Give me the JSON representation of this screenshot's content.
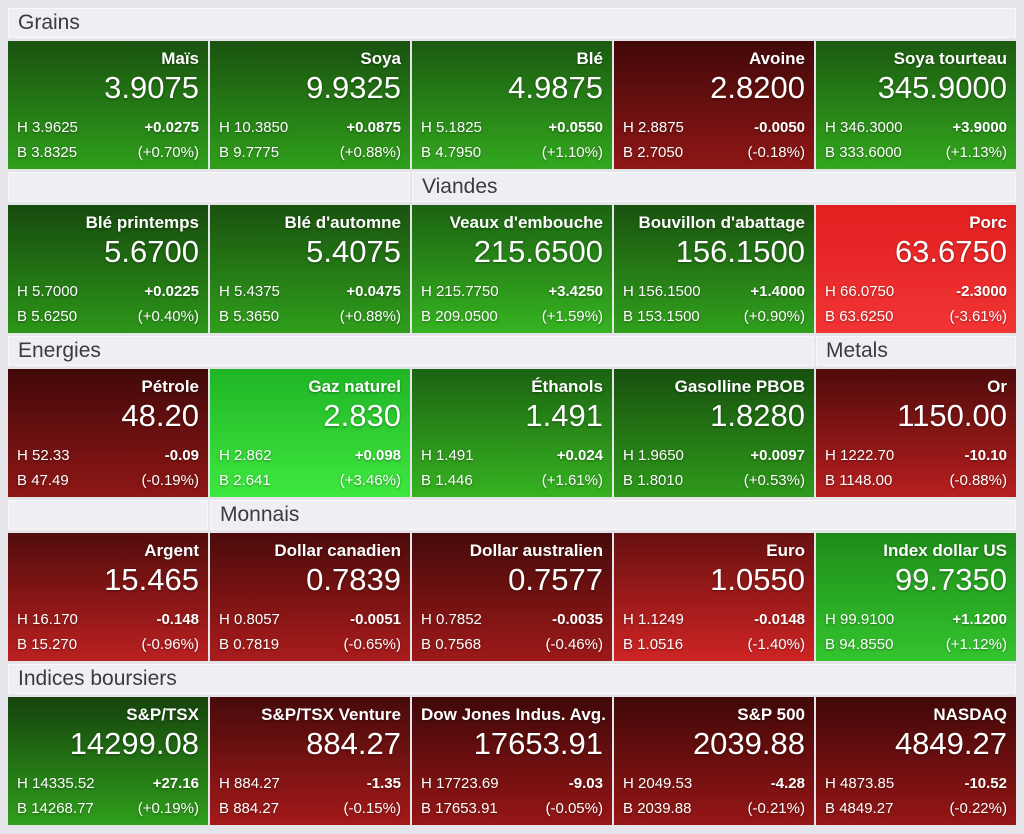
{
  "labels": {
    "high_prefix": "H",
    "low_prefix": "B"
  },
  "rows": [
    {
      "header": [
        {
          "label": "Grains",
          "span": 5
        }
      ],
      "tiles": [
        {
          "name": "Maïs",
          "price": "3.9075",
          "high": "3.9625",
          "low": "3.8325",
          "change": "+0.0275",
          "change_pct": "(+0.70%)",
          "colors": {
            "top": "#1a520f",
            "bottom": "#2f9f1b"
          }
        },
        {
          "name": "Soya",
          "price": "9.9325",
          "high": "10.3850",
          "low": "9.7775",
          "change": "+0.0875",
          "change_pct": "(+0.88%)",
          "colors": {
            "top": "#1a520f",
            "bottom": "#2f9f1b"
          }
        },
        {
          "name": "Blé",
          "price": "4.9875",
          "high": "5.1825",
          "low": "4.7950",
          "change": "+0.0550",
          "change_pct": "(+1.10%)",
          "colors": {
            "top": "#1b5a10",
            "bottom": "#33a81e"
          }
        },
        {
          "name": "Avoine",
          "price": "2.8200",
          "high": "2.8875",
          "low": "2.7050",
          "change": "-0.0050",
          "change_pct": "(-0.18%)",
          "colors": {
            "top": "#420909",
            "bottom": "#8f1616"
          }
        },
        {
          "name": "Soya tourteau",
          "price": "345.9000",
          "high": "346.3000",
          "low": "333.6000",
          "change": "+3.9000",
          "change_pct": "(+1.13%)",
          "colors": {
            "top": "#1b5a10",
            "bottom": "#33a81e"
          }
        }
      ]
    },
    {
      "header": [
        {
          "label": "",
          "span": 2
        },
        {
          "label": "Viandes",
          "span": 3
        }
      ],
      "tiles": [
        {
          "name": "Blé printemps",
          "price": "5.6700",
          "high": "5.7000",
          "low": "5.6250",
          "change": "+0.0225",
          "change_pct": "(+0.40%)",
          "colors": {
            "top": "#174a0d",
            "bottom": "#2c9619"
          }
        },
        {
          "name": "Blé d'automne",
          "price": "5.4075",
          "high": "5.4375",
          "low": "5.3650",
          "change": "+0.0475",
          "change_pct": "(+0.88%)",
          "colors": {
            "top": "#1a520f",
            "bottom": "#2f9f1b"
          }
        },
        {
          "name": "Veaux d'embouche",
          "price": "215.6500",
          "high": "215.7750",
          "low": "209.0500",
          "change": "+3.4250",
          "change_pct": "(+1.59%)",
          "colors": {
            "top": "#1c6311",
            "bottom": "#36b321"
          }
        },
        {
          "name": "Bouvillon d'abattage",
          "price": "156.1500",
          "high": "156.1500",
          "low": "153.1500",
          "change": "+1.4000",
          "change_pct": "(+0.90%)",
          "colors": {
            "top": "#1a520f",
            "bottom": "#30a11c"
          }
        },
        {
          "name": "Porc",
          "price": "63.6750",
          "high": "66.0750",
          "low": "63.6250",
          "change": "-2.3000",
          "change_pct": "(-3.61%)",
          "colors": {
            "top": "#e12020",
            "bottom": "#f23434"
          }
        }
      ]
    },
    {
      "header": [
        {
          "label": "Energies",
          "span": 4
        },
        {
          "label": "Metals",
          "span": 1
        }
      ],
      "tiles": [
        {
          "name": "Pétrole",
          "price": "48.20",
          "high": "52.33",
          "low": "47.49",
          "change": "-0.09",
          "change_pct": "(-0.19%)",
          "colors": {
            "top": "#420909",
            "bottom": "#8f1616"
          }
        },
        {
          "name": "Gaz naturel",
          "price": "2.830",
          "high": "2.862",
          "low": "2.641",
          "change": "+0.098",
          "change_pct": "(+3.46%)",
          "colors": {
            "top": "#20b525",
            "bottom": "#3ee83f"
          }
        },
        {
          "name": "Éthanols",
          "price": "1.491",
          "high": "1.491",
          "low": "1.446",
          "change": "+0.024",
          "change_pct": "(+1.61%)",
          "colors": {
            "top": "#1c6311",
            "bottom": "#36b321"
          }
        },
        {
          "name": "Gasolline PBOB",
          "price": "1.8280",
          "high": "1.9650",
          "low": "1.8010",
          "change": "+0.0097",
          "change_pct": "(+0.53%)",
          "colors": {
            "top": "#18500e",
            "bottom": "#2e9a1a"
          }
        },
        {
          "name": "Or",
          "price": "1150.00",
          "high": "1222.70",
          "low": "1148.00",
          "change": "-10.10",
          "change_pct": "(-0.88%)",
          "colors": {
            "top": "#500b0b",
            "bottom": "#b81f1f"
          }
        }
      ]
    },
    {
      "header": [
        {
          "label": "",
          "span": 1
        },
        {
          "label": "Monnais",
          "span": 4
        }
      ],
      "tiles": [
        {
          "name": "Argent",
          "price": "15.465",
          "high": "16.170",
          "low": "15.270",
          "change": "-0.148",
          "change_pct": "(-0.96%)",
          "colors": {
            "top": "#520c0c",
            "bottom": "#bb2020"
          }
        },
        {
          "name": "Dollar canadien",
          "price": "0.7839",
          "high": "0.8057",
          "low": "0.7819",
          "change": "-0.0051",
          "change_pct": "(-0.65%)",
          "colors": {
            "top": "#4b0a0a",
            "bottom": "#aa1c1c"
          }
        },
        {
          "name": "Dollar australien",
          "price": "0.7577",
          "high": "0.7852",
          "low": "0.7568",
          "change": "-0.0035",
          "change_pct": "(-0.46%)",
          "colors": {
            "top": "#460a0a",
            "bottom": "#9e1919"
          }
        },
        {
          "name": "Euro",
          "price": "1.0550",
          "high": "1.1249",
          "low": "1.0516",
          "change": "-0.0148",
          "change_pct": "(-1.40%)",
          "colors": {
            "top": "#681010",
            "bottom": "#cf2424"
          }
        },
        {
          "name": "Index dollar US",
          "price": "99.7350",
          "high": "99.9100",
          "low": "94.8550",
          "change": "+1.1200",
          "change_pct": "(+1.12%)",
          "colors": {
            "top": "#1e8c18",
            "bottom": "#34c52e"
          }
        }
      ]
    },
    {
      "header": [
        {
          "label": "Indices boursiers",
          "span": 5
        }
      ],
      "tiles": [
        {
          "name": "S&P/TSX",
          "price": "14299.08",
          "high": "14335.52",
          "low": "14268.77",
          "change": "+27.16",
          "change_pct": "(+0.19%)",
          "colors": {
            "top": "#16430d",
            "bottom": "#2f9f1b"
          }
        },
        {
          "name": "S&P/TSX Venture",
          "price": "884.27",
          "high": "884.27",
          "low": "884.27",
          "change": "-1.35",
          "change_pct": "(-0.15%)",
          "colors": {
            "top": "#470a0a",
            "bottom": "#a41a1a"
          }
        },
        {
          "name": "Dow Jones Indus. Avg.",
          "price": "17653.91",
          "high": "17723.69",
          "low": "17653.91",
          "change": "-9.03",
          "change_pct": "(-0.05%)",
          "colors": {
            "top": "#400808",
            "bottom": "#971616"
          }
        },
        {
          "name": "S&P 500",
          "price": "2039.88",
          "high": "2049.53",
          "low": "2039.88",
          "change": "-4.28",
          "change_pct": "(-0.21%)",
          "colors": {
            "top": "#400808",
            "bottom": "#971616"
          }
        },
        {
          "name": "NASDAQ",
          "price": "4849.27",
          "high": "4873.85",
          "low": "4849.27",
          "change": "-10.52",
          "change_pct": "(-0.22%)",
          "colors": {
            "top": "#400808",
            "bottom": "#971616"
          }
        }
      ]
    }
  ]
}
